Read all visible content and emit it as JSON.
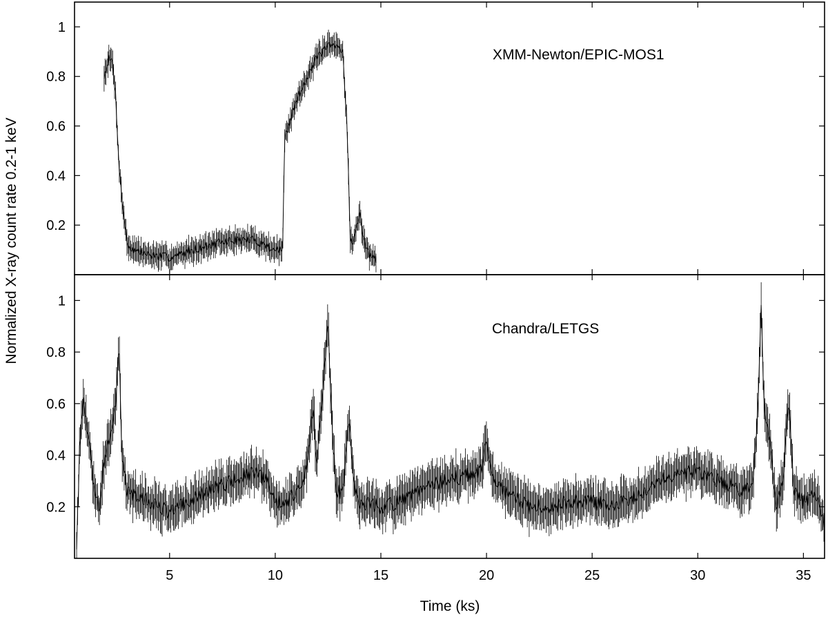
{
  "chart_data": {
    "type": "line",
    "ylabel": "Normalized X-ray count rate 0.2-1 keV",
    "xlabel": "Time (ks)",
    "xlim": [
      0.5,
      36.0
    ],
    "x_ticks": [
      5,
      10,
      15,
      20,
      25,
      30,
      35
    ],
    "grid": false,
    "panels": [
      {
        "id": "top",
        "annotation": "XMM-Newton/EPIC-MOS1",
        "ylim": [
          0.0,
          1.1
        ],
        "y_ticks": [
          0.2,
          0.4,
          0.6,
          0.8,
          1
        ],
        "keypoints": [
          [
            1.9,
            0.8
          ],
          [
            2.1,
            0.87
          ],
          [
            2.3,
            0.86
          ],
          [
            2.45,
            0.72
          ],
          [
            2.6,
            0.45
          ],
          [
            2.75,
            0.3
          ],
          [
            3.0,
            0.12
          ],
          [
            3.3,
            0.1
          ],
          [
            4.0,
            0.08
          ],
          [
            5.0,
            0.07
          ],
          [
            5.5,
            0.08
          ],
          [
            6.0,
            0.1
          ],
          [
            7.0,
            0.12
          ],
          [
            7.5,
            0.13
          ],
          [
            8.0,
            0.14
          ],
          [
            9.0,
            0.14
          ],
          [
            9.5,
            0.12
          ],
          [
            10.0,
            0.1
          ],
          [
            10.35,
            0.1
          ],
          [
            10.45,
            0.55
          ],
          [
            11.0,
            0.7
          ],
          [
            11.5,
            0.8
          ],
          [
            12.0,
            0.88
          ],
          [
            12.5,
            0.92
          ],
          [
            13.0,
            0.92
          ],
          [
            13.2,
            0.9
          ],
          [
            13.4,
            0.6
          ],
          [
            13.55,
            0.15
          ],
          [
            13.7,
            0.12
          ],
          [
            13.85,
            0.2
          ],
          [
            14.0,
            0.24
          ],
          [
            14.2,
            0.14
          ],
          [
            14.5,
            0.07
          ],
          [
            14.8,
            0.06
          ]
        ],
        "noise": 0.018,
        "seed": 7
      },
      {
        "id": "bottom",
        "annotation": "Chandra/LETGS",
        "ylim": [
          0.0,
          1.1
        ],
        "y_ticks": [
          0.2,
          0.4,
          0.6,
          0.8,
          1
        ],
        "keypoints": [
          [
            0.6,
            0.05
          ],
          [
            0.75,
            0.45
          ],
          [
            0.9,
            0.6
          ],
          [
            1.05,
            0.55
          ],
          [
            1.3,
            0.35
          ],
          [
            1.5,
            0.22
          ],
          [
            1.7,
            0.2
          ],
          [
            1.9,
            0.38
          ],
          [
            2.1,
            0.45
          ],
          [
            2.3,
            0.48
          ],
          [
            2.45,
            0.62
          ],
          [
            2.6,
            0.85
          ],
          [
            2.75,
            0.4
          ],
          [
            3.0,
            0.25
          ],
          [
            4.0,
            0.22
          ],
          [
            5.0,
            0.18
          ],
          [
            6.0,
            0.22
          ],
          [
            7.0,
            0.27
          ],
          [
            8.0,
            0.3
          ],
          [
            9.0,
            0.33
          ],
          [
            9.6,
            0.3
          ],
          [
            10.0,
            0.22
          ],
          [
            10.5,
            0.22
          ],
          [
            11.0,
            0.25
          ],
          [
            11.5,
            0.35
          ],
          [
            11.8,
            0.6
          ],
          [
            11.95,
            0.35
          ],
          [
            12.2,
            0.6
          ],
          [
            12.5,
            0.92
          ],
          [
            12.7,
            0.5
          ],
          [
            12.9,
            0.25
          ],
          [
            13.2,
            0.27
          ],
          [
            13.5,
            0.55
          ],
          [
            13.7,
            0.3
          ],
          [
            14.0,
            0.22
          ],
          [
            15.0,
            0.2
          ],
          [
            16.0,
            0.22
          ],
          [
            17.0,
            0.27
          ],
          [
            18.0,
            0.3
          ],
          [
            19.0,
            0.32
          ],
          [
            19.7,
            0.33
          ],
          [
            20.0,
            0.45
          ],
          [
            20.3,
            0.3
          ],
          [
            21.0,
            0.25
          ],
          [
            22.0,
            0.2
          ],
          [
            23.0,
            0.2
          ],
          [
            24.0,
            0.22
          ],
          [
            25.0,
            0.22
          ],
          [
            26.0,
            0.2
          ],
          [
            27.0,
            0.24
          ],
          [
            28.0,
            0.3
          ],
          [
            29.0,
            0.33
          ],
          [
            30.0,
            0.34
          ],
          [
            31.0,
            0.3
          ],
          [
            32.0,
            0.27
          ],
          [
            32.6,
            0.27
          ],
          [
            32.85,
            0.6
          ],
          [
            33.0,
            0.98
          ],
          [
            33.15,
            0.55
          ],
          [
            33.4,
            0.45
          ],
          [
            33.7,
            0.2
          ],
          [
            34.0,
            0.28
          ],
          [
            34.3,
            0.6
          ],
          [
            34.55,
            0.25
          ],
          [
            35.0,
            0.22
          ],
          [
            35.5,
            0.25
          ],
          [
            35.8,
            0.2
          ],
          [
            36.0,
            0.12
          ]
        ],
        "noise": 0.03,
        "seed": 13
      }
    ]
  }
}
